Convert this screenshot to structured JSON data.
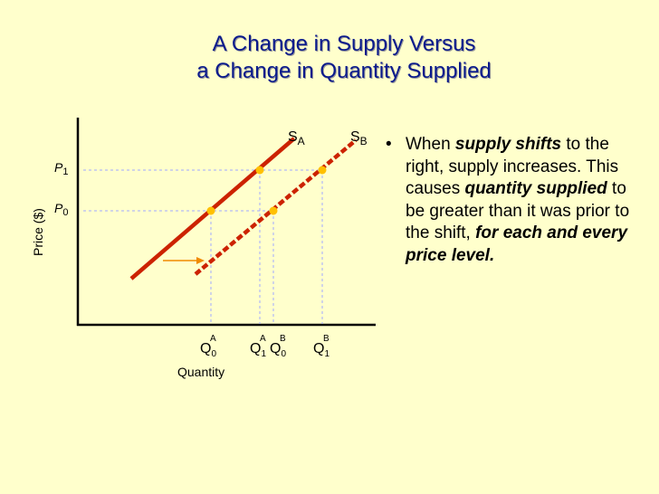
{
  "title": {
    "line1": "A Change in Supply Versus",
    "line2": "a Change in Quantity Supplied"
  },
  "colors": {
    "background": "#ffffcc",
    "title": "#0a1a8c",
    "supply_line": "#cc2200",
    "point": "#ffc000",
    "arrow": "#f08a00",
    "guide": "#a0a8ff"
  },
  "diagram": {
    "curves": [
      {
        "label": "S",
        "subscript": "A"
      },
      {
        "label": "S",
        "subscript": "B"
      }
    ],
    "price_levels": [
      {
        "label": "P",
        "subscript": "1"
      },
      {
        "label": "P",
        "subscript": "0"
      }
    ],
    "quantity_labels": [
      {
        "label": "Q",
        "sub": "0",
        "sup": "A"
      },
      {
        "label": "Q",
        "sub": "1",
        "sup": "A"
      },
      {
        "label": "Q",
        "sub": "0",
        "sup": "B"
      },
      {
        "label": "Q",
        "sub": "1",
        "sup": "B"
      }
    ],
    "x_axis_label": "Quantity",
    "y_axis_label": "Price ($)"
  },
  "bullet": {
    "t1": "When ",
    "e1": "supply shifts",
    "t2": " to the right, supply increases. This causes ",
    "e2": "quantity supplied",
    "t3": " to be greater than it was prior to the shift, ",
    "e3": "for each and every price level."
  }
}
